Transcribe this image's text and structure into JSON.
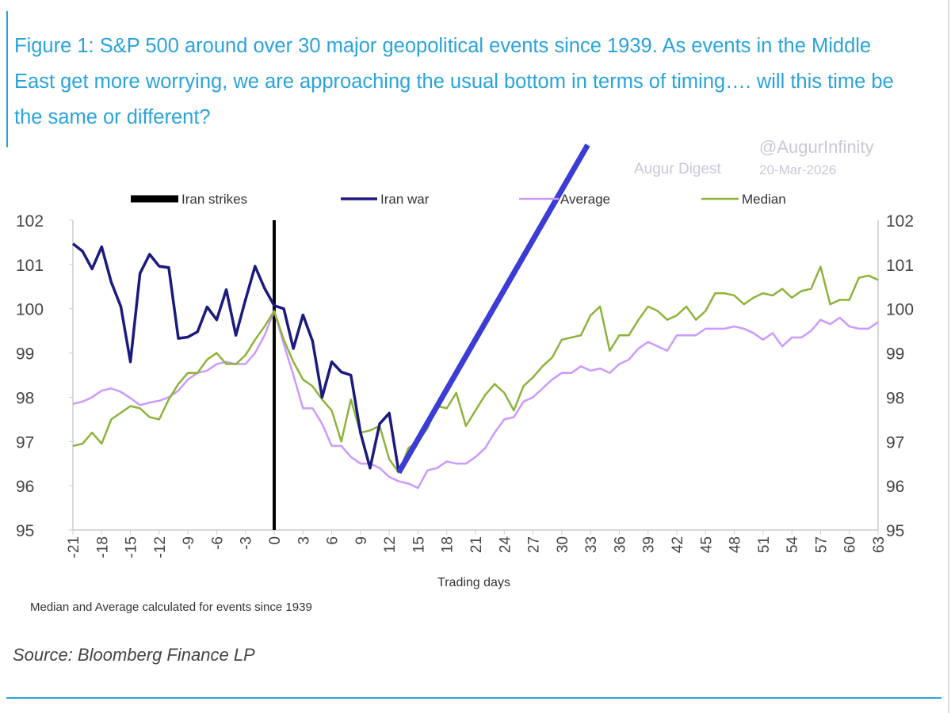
{
  "title": "Figure 1: S&P 500 around over 30 major geopolitical events since 1939. As events in the Middle East get more worrying, we are approaching the usual bottom in terms of timing…. will this time be the same or different?",
  "watermark": {
    "line1": "Augur Digest",
    "line2": "20-Mar-2026",
    "handle": "@AugurInfinity"
  },
  "note": "Median and Average calculated for events since 1939",
  "source": "Source: Bloomberg Finance LP",
  "colors": {
    "title": "#29a3dc",
    "iran_strikes": "#000000",
    "iran_war": "#1b1b7e",
    "average": "#cc99ff",
    "median": "#8db33a",
    "projection": "#3b3bd6"
  },
  "chart_data": {
    "type": "line",
    "xlabel": "Trading days",
    "ylabel": "",
    "xlim": [
      -21,
      63
    ],
    "ylim": [
      95,
      102
    ],
    "yticks": [
      95,
      96,
      97,
      98,
      99,
      100,
      101,
      102
    ],
    "xtick_step": 3,
    "grid": false,
    "legend_placement": "top",
    "legend": [
      "Iran strikes",
      "Iran war",
      "Average",
      "Median"
    ],
    "event_marker": {
      "name": "Iran strikes",
      "x": 0
    },
    "x_start": -21,
    "series": [
      {
        "name": "Iran war",
        "values": [
          101.47,
          101.3,
          100.9,
          101.4,
          100.6,
          100.05,
          98.8,
          100.8,
          101.23,
          100.96,
          100.93,
          99.33,
          99.36,
          99.48,
          100.04,
          99.75,
          100.43,
          99.4,
          100.2,
          100.96,
          100.46,
          100.07,
          100.0,
          99.1,
          99.86,
          99.27,
          98.0,
          98.8,
          98.57,
          98.5,
          97.2,
          96.4,
          97.4,
          97.64,
          96.3
        ]
      },
      {
        "name": "Average",
        "values": [
          97.85,
          97.9,
          98.0,
          98.15,
          98.2,
          98.12,
          97.98,
          97.82,
          97.88,
          97.92,
          98.0,
          98.15,
          98.4,
          98.55,
          98.6,
          98.75,
          98.8,
          98.75,
          98.75,
          99.0,
          99.4,
          99.95,
          99.2,
          98.5,
          97.75,
          97.75,
          97.4,
          96.9,
          96.9,
          96.65,
          96.5,
          96.5,
          96.4,
          96.2,
          96.1,
          96.05,
          95.95,
          96.35,
          96.4,
          96.55,
          96.5,
          96.5,
          96.65,
          96.85,
          97.2,
          97.5,
          97.55,
          97.9,
          98.0,
          98.2,
          98.4,
          98.55,
          98.55,
          98.7,
          98.6,
          98.65,
          98.55,
          98.75,
          98.85,
          99.1,
          99.25,
          99.15,
          99.05,
          99.4,
          99.4,
          99.4,
          99.55,
          99.55,
          99.55,
          99.6,
          99.55,
          99.45,
          99.3,
          99.45,
          99.15,
          99.35,
          99.35,
          99.5,
          99.75,
          99.65,
          99.8,
          99.6,
          99.55,
          99.55,
          99.7
        ]
      },
      {
        "name": "Median",
        "values": [
          96.9,
          96.95,
          97.2,
          96.95,
          97.5,
          97.65,
          97.8,
          97.75,
          97.55,
          97.5,
          97.95,
          98.3,
          98.55,
          98.55,
          98.85,
          99.0,
          98.75,
          98.75,
          98.95,
          99.3,
          99.6,
          99.95,
          99.3,
          98.8,
          98.4,
          98.25,
          97.95,
          97.7,
          97.0,
          97.95,
          97.2,
          97.25,
          97.35,
          96.6,
          96.3,
          96.85,
          97.0,
          97.3,
          97.8,
          97.75,
          98.1,
          97.35,
          97.7,
          98.05,
          98.3,
          98.1,
          97.7,
          98.25,
          98.45,
          98.7,
          98.9,
          99.3,
          99.35,
          99.4,
          99.85,
          100.05,
          99.05,
          99.4,
          99.4,
          99.75,
          100.05,
          99.95,
          99.75,
          99.85,
          100.05,
          99.75,
          99.95,
          100.35,
          100.35,
          100.3,
          100.1,
          100.25,
          100.35,
          100.3,
          100.45,
          100.25,
          100.4,
          100.45,
          100.95,
          100.1,
          100.2,
          100.2,
          100.7,
          100.75,
          100.65
        ]
      }
    ],
    "projection": {
      "name": "Projected rebound line",
      "from": [
        13,
        96.3
      ],
      "to": [
        32.7,
        103.7
      ]
    }
  }
}
